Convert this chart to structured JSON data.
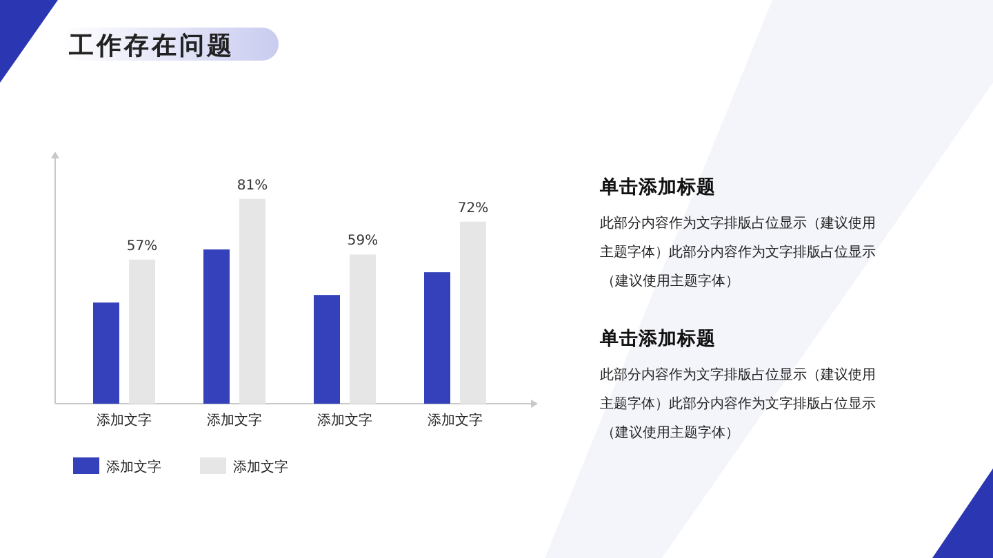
{
  "chart_data": {
    "type": "bar",
    "title": "工作存在问题",
    "categories": [
      "添加文字",
      "添加文字",
      "添加文字",
      "添加文字"
    ],
    "series": [
      {
        "name": "添加文字",
        "color": "#3441bb",
        "values": [
          40,
          61,
          43,
          52
        ]
      },
      {
        "name": "添加文字",
        "color": "#e6e6e6",
        "values": [
          57,
          81,
          59,
          72
        ],
        "value_labels": [
          "57%",
          "81%",
          "59%",
          "72%"
        ]
      }
    ],
    "ylim": [
      0,
      97
    ],
    "tick_labels": "x",
    "grid": false,
    "legend": "bottom left",
    "annotations": [
      "单击添加标题",
      "此部分内容作为文字排版占位显示（建议使用主题字体）此部分内容作为文字排版占位显示（建议使用主题字体）",
      "单击添加标题",
      "此部分内容作为文字排版占位显示（建议使用主题字体）此部分内容作为文字排版占位显示（建议使用主题字体）"
    ]
  }
}
